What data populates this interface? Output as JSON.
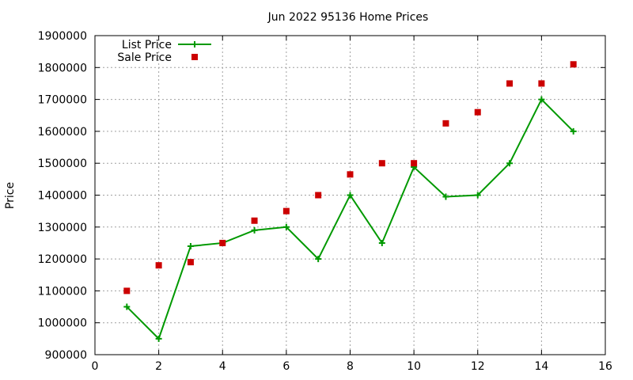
{
  "chart_data": {
    "type": "line",
    "title": "Jun 2022 95136 Home Prices",
    "xlabel": "",
    "ylabel": "Price",
    "xlim": [
      0,
      16
    ],
    "ylim": [
      900000,
      1900000
    ],
    "x_ticks": [
      0,
      2,
      4,
      6,
      8,
      10,
      12,
      14,
      16
    ],
    "y_ticks": [
      900000,
      1000000,
      1100000,
      1200000,
      1300000,
      1400000,
      1500000,
      1600000,
      1700000,
      1800000,
      1900000
    ],
    "grid": true,
    "legend_position": "top-left",
    "x": [
      1,
      2,
      3,
      4,
      5,
      6,
      7,
      8,
      9,
      10,
      11,
      12,
      13,
      14,
      15
    ],
    "series": [
      {
        "name": "List Price",
        "style": "linespoints",
        "color": "#009900",
        "marker": "plus",
        "values": [
          1050000,
          950000,
          1240000,
          1250000,
          1290000,
          1300000,
          1200000,
          1400000,
          1250000,
          1488000,
          1395000,
          1400000,
          1500000,
          1700000,
          1600000
        ]
      },
      {
        "name": "Sale Price",
        "style": "points",
        "color": "#cc0000",
        "marker": "square",
        "values": [
          1100000,
          1180000,
          1190000,
          1250000,
          1320000,
          1350000,
          1400000,
          1465000,
          1500000,
          1500000,
          1625000,
          1660000,
          1750000,
          1750000,
          1810000
        ]
      }
    ]
  }
}
